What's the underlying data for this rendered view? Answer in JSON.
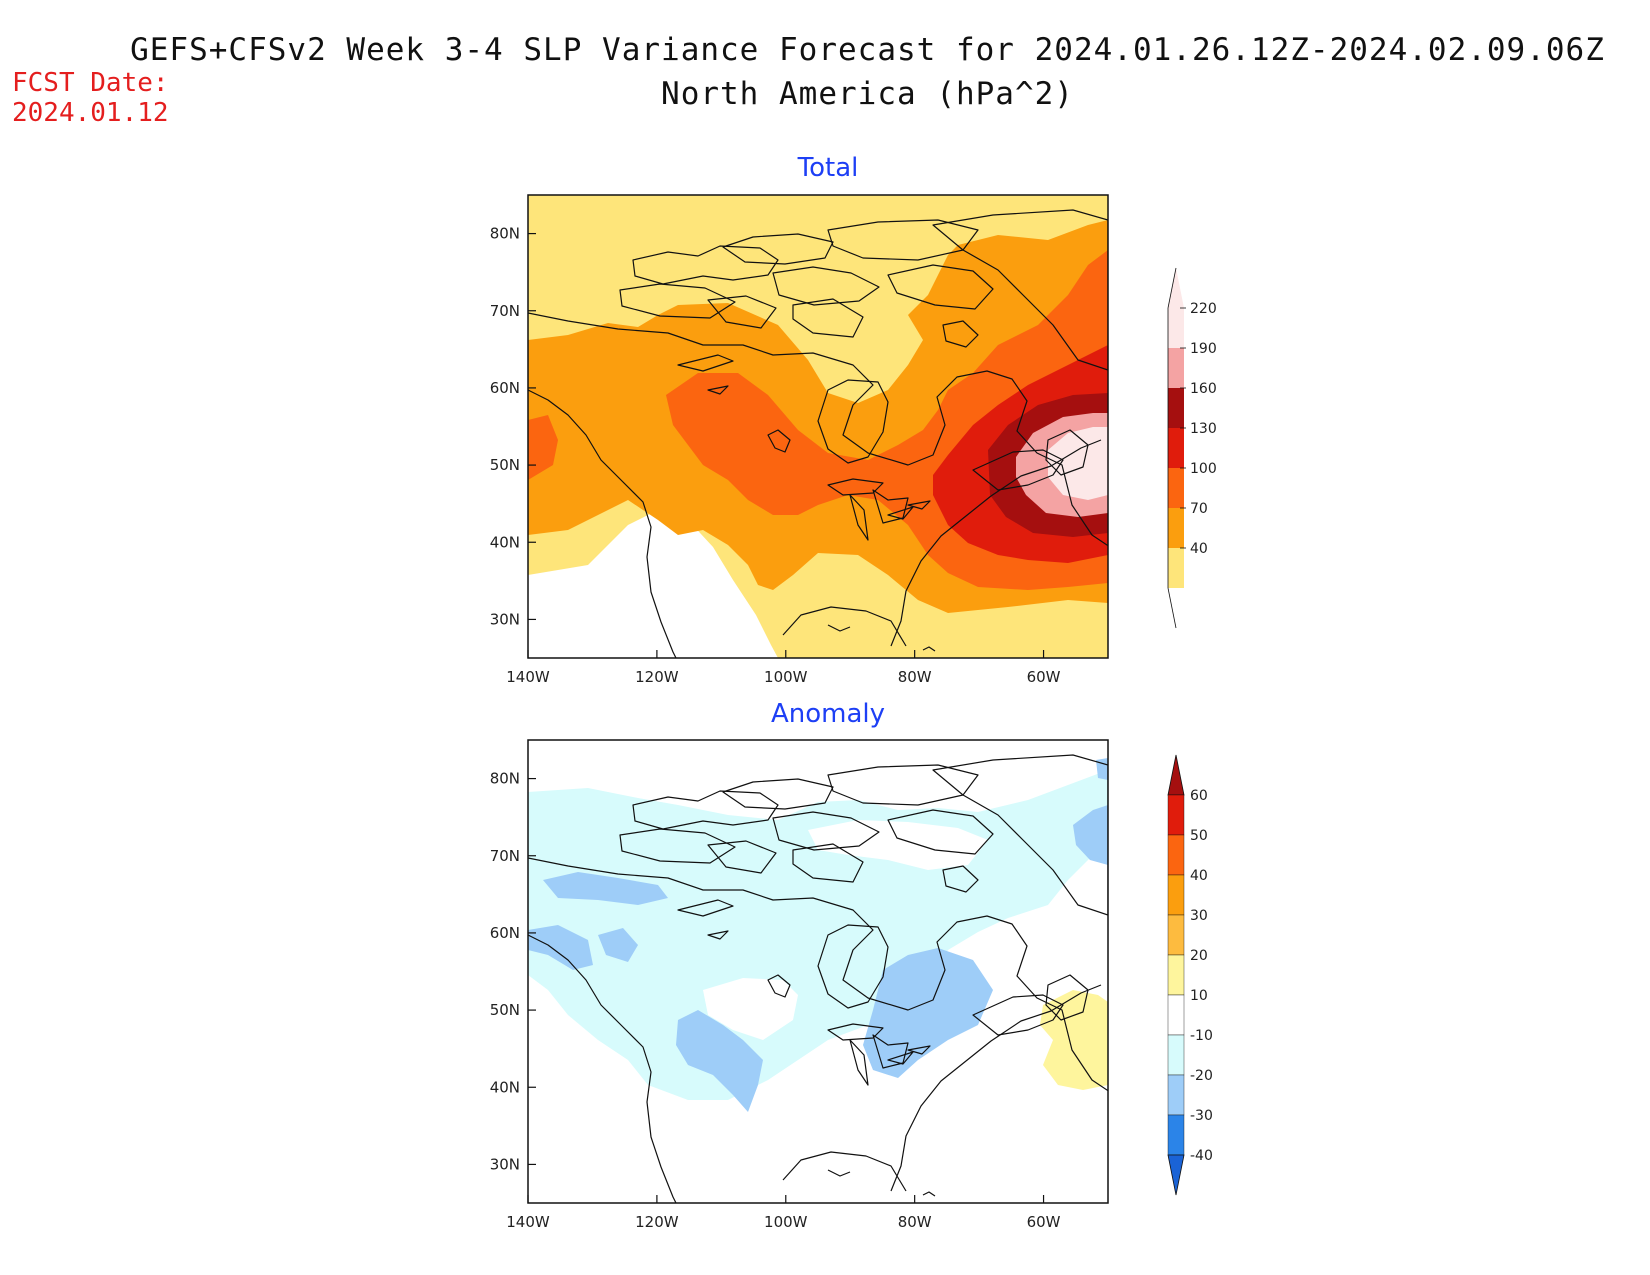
{
  "title": "GEFS+CFSv2 Week 3-4 SLP Variance Forecast for 2024.01.26.12Z-2024.02.09.06Z",
  "subtitle": "North America (hPa^2)",
  "fcst_date_label": "FCST Date:",
  "fcst_date_value": "2024.01.12",
  "map": {
    "region": "North America",
    "lon_range": [
      -140,
      -50
    ],
    "lat_range": [
      25,
      85
    ],
    "x_ticks": [
      "140W",
      "120W",
      "100W",
      "80W",
      "60W"
    ],
    "y_ticks": [
      "80N",
      "70N",
      "60N",
      "50N",
      "40N",
      "30N"
    ]
  },
  "panels": [
    {
      "id": "total",
      "title": "Total",
      "colorbar_labels": [
        "220",
        "190",
        "160",
        "130",
        "100",
        "70",
        "40"
      ],
      "colorbar_colors": [
        "#fce8e8",
        "#f4a3a3",
        "#a50f0f",
        "#e01c0c",
        "#fb6510",
        "#fb9e0e",
        "#fee57a"
      ],
      "field_colors": {
        "c40": "#fee57a",
        "c70": "#fb9e0e",
        "c100": "#fb6510",
        "c130": "#e01c0c",
        "c160": "#a50f0f",
        "c190": "#f4a3a3",
        "c220": "#fce8e8"
      }
    },
    {
      "id": "anomaly",
      "title": "Anomaly",
      "colorbar_labels": [
        "60",
        "50",
        "40",
        "30",
        "20",
        "10",
        "-10",
        "-20",
        "-30",
        "-40"
      ],
      "colorbar_colors": [
        "#a50f0f",
        "#e01c0c",
        "#fb6510",
        "#fb9e0e",
        "#fdbb3f",
        "#fef59d",
        "#ffffff",
        "#d7fbfc",
        "#9ecdf8",
        "#2b84e8",
        "#1a63d6"
      ],
      "field_colors": {
        "neg10": "#d7fbfc",
        "neg20": "#9ecdf8",
        "pos10": "#fef59d"
      }
    }
  ]
}
